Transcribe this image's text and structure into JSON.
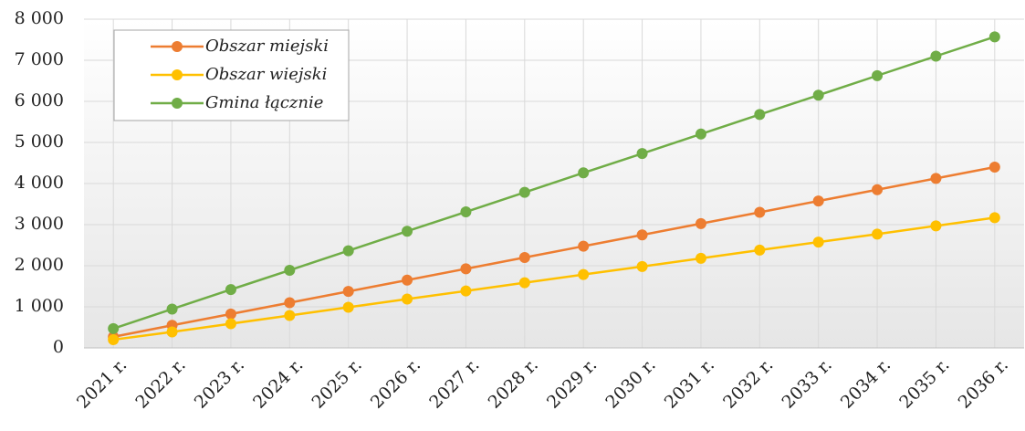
{
  "chart_data": {
    "type": "line",
    "categories": [
      "2021 r.",
      "2022 r.",
      "2023 r.",
      "2024 r.",
      "2025 r.",
      "2026 r.",
      "2027 r.",
      "2028 r.",
      "2029 r.",
      "2030 r.",
      "2031 r.",
      "2032 r.",
      "2033 r.",
      "2034 r.",
      "2035 r.",
      "2036 r."
    ],
    "series": [
      {
        "name": "Obszar miejski",
        "color": "#ed7d31",
        "values": [
          270,
          550,
          825,
          1100,
          1375,
          1650,
          1925,
          2200,
          2475,
          2750,
          3025,
          3300,
          3575,
          3850,
          4125,
          4400
        ]
      },
      {
        "name": "Obszar wiejski",
        "color": "#ffc000",
        "values": [
          200,
          390,
          590,
          790,
          990,
          1190,
          1385,
          1585,
          1785,
          1980,
          2180,
          2380,
          2575,
          2770,
          2970,
          3170
        ]
      },
      {
        "name": "Gmina łącznie",
        "color": "#70ad47",
        "values": [
          470,
          945,
          1420,
          1890,
          2365,
          2840,
          3310,
          3785,
          4260,
          4730,
          5205,
          5680,
          6150,
          6625,
          7100,
          7570
        ]
      }
    ],
    "ylim": [
      0,
      8000
    ],
    "yticks": [
      {
        "value": 0,
        "label": "0"
      },
      {
        "value": 1000,
        "label": "1 000"
      },
      {
        "value": 2000,
        "label": "2 000"
      },
      {
        "value": 3000,
        "label": "3 000"
      },
      {
        "value": 4000,
        "label": "4 000"
      },
      {
        "value": 5000,
        "label": "5 000"
      },
      {
        "value": 6000,
        "label": "6 000"
      },
      {
        "value": 7000,
        "label": "7 000"
      },
      {
        "value": 8000,
        "label": "8 000"
      }
    ],
    "grid": true,
    "legend": "top-left"
  }
}
